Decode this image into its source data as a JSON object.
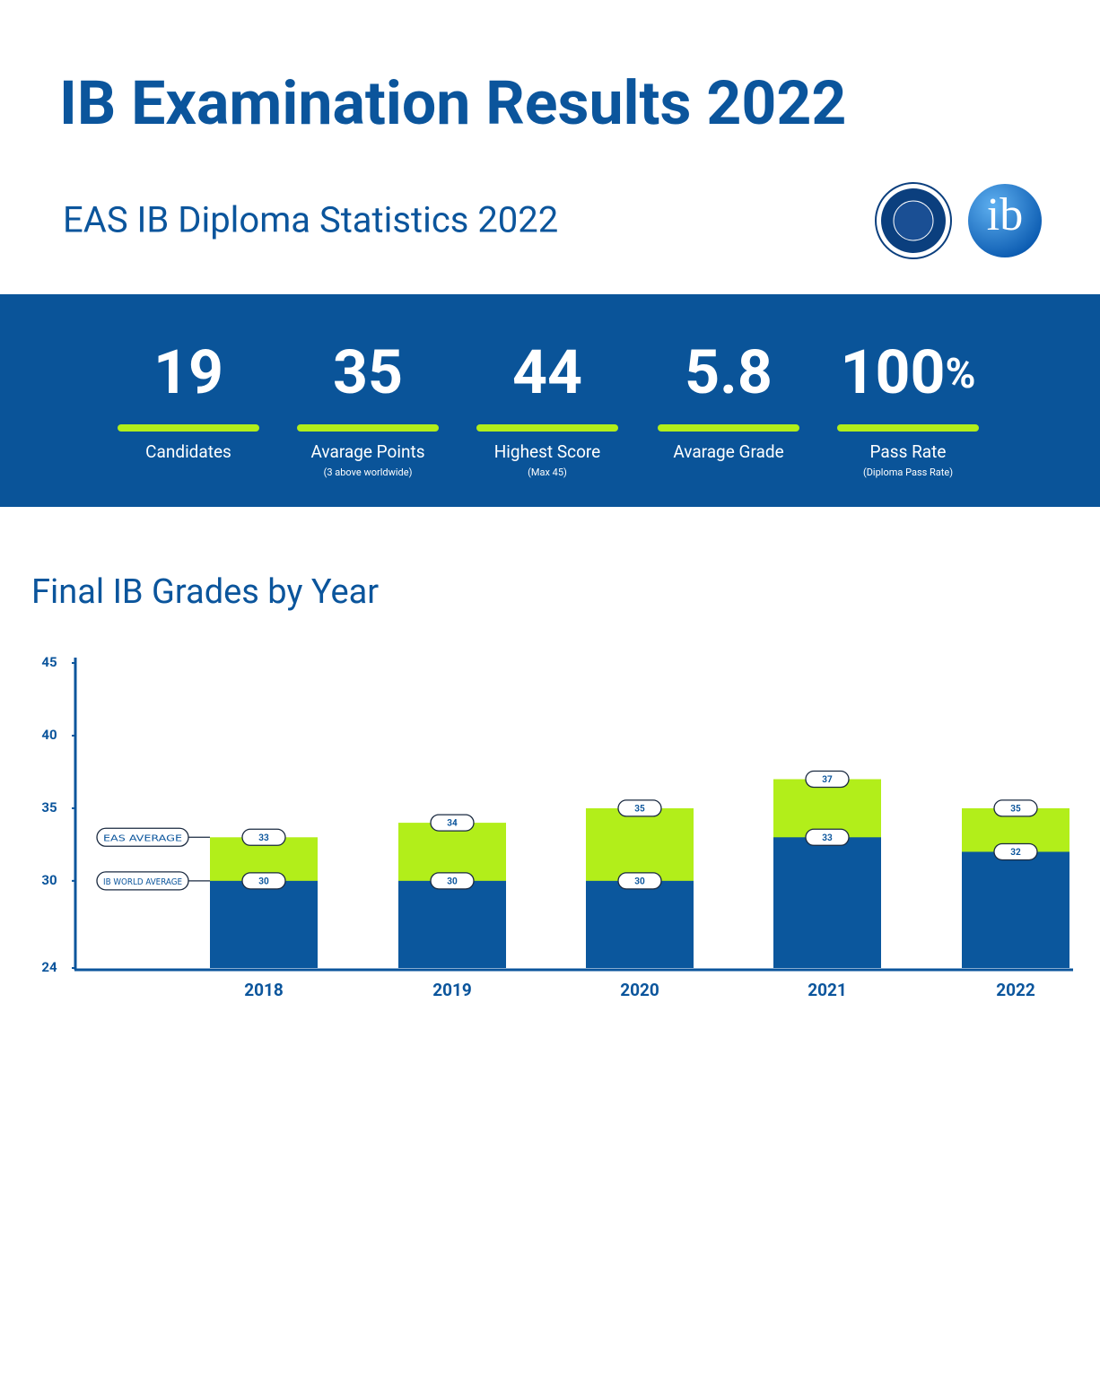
{
  "header": {
    "title": "IB Examination Results 2022",
    "subtitle": "EAS IB Diploma Statistics 2022",
    "ib_logo": "ib"
  },
  "stats": [
    {
      "value": 19,
      "label": "Candidates"
    },
    {
      "value": 35,
      "label": "Avarage Points",
      "note": "(3 above worldwide)"
    },
    {
      "value": 44,
      "label": "Highest Score",
      "note": "(Max 45)"
    },
    {
      "value": 5.8,
      "label": "Avarage Grade"
    },
    {
      "value": 100,
      "unit": "%",
      "label": "Pass Rate",
      "note": "(Diploma Pass Rate)"
    }
  ],
  "chart_data": {
    "type": "bar",
    "title": "Final IB Grades by Year",
    "categories": [
      "2018",
      "2019",
      "2020",
      "2021",
      "2022"
    ],
    "series": [
      {
        "name": "EAS AVERAGE",
        "color": "#b2ee1a",
        "values": [
          33,
          34,
          35,
          37,
          35
        ]
      },
      {
        "name": "IB WORLD AVERAGE",
        "color": "#0b579d",
        "values": [
          30,
          30,
          30,
          33,
          32
        ]
      }
    ],
    "ylim": [
      24,
      45
    ],
    "yticks": [
      24,
      30,
      35,
      40,
      45
    ]
  }
}
